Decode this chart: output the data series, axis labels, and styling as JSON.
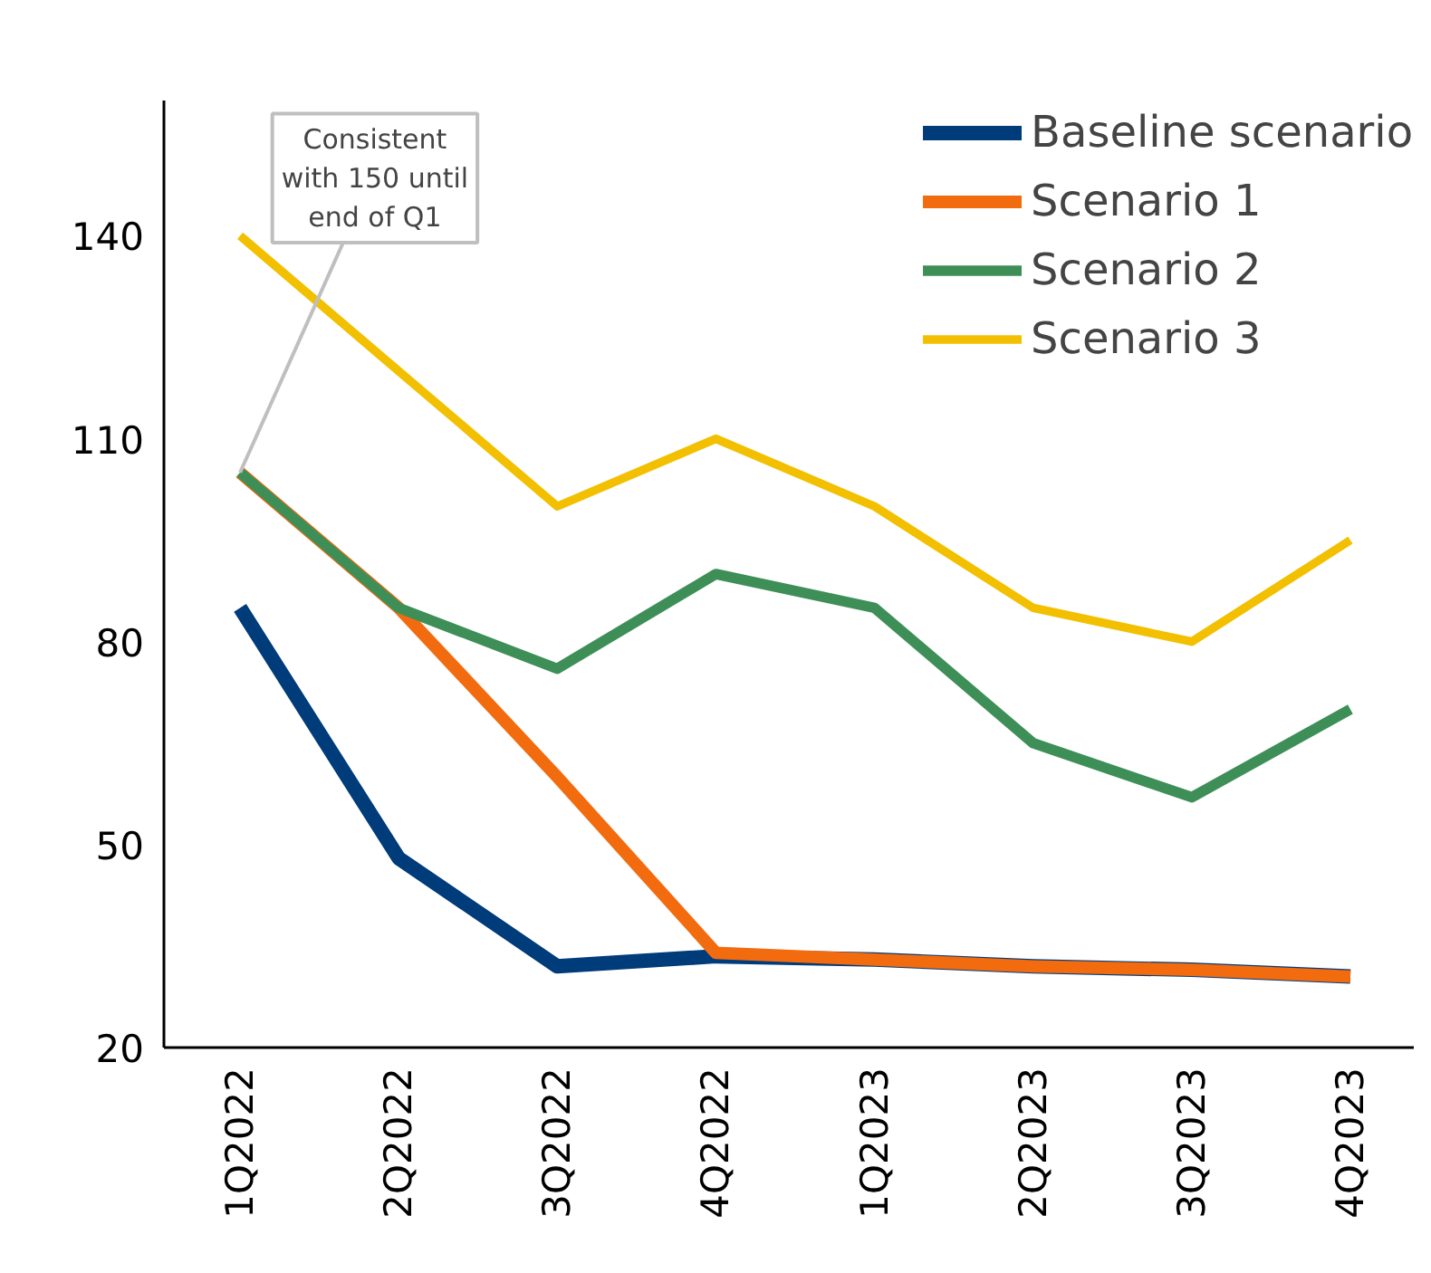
{
  "chart_data": {
    "type": "line",
    "categories": [
      "1Q2022",
      "2Q2022",
      "3Q2022",
      "4Q2022",
      "1Q2023",
      "2Q2023",
      "3Q2023",
      "4Q2023"
    ],
    "series": [
      {
        "name": "Baseline scenario",
        "color": "#003b7a",
        "values": [
          85,
          48,
          32,
          33.5,
          33,
          32,
          31.5,
          30.5
        ]
      },
      {
        "name": "Scenario 1",
        "color": "#f26b0f",
        "values": [
          105,
          85,
          60,
          34,
          33,
          32,
          31.5,
          30.5
        ]
      },
      {
        "name": "Scenario 2",
        "color": "#3e8f57",
        "values": [
          105,
          85,
          76,
          90,
          85,
          65,
          57,
          70
        ]
      },
      {
        "name": "Scenario 3",
        "color": "#f2c000",
        "values": [
          140,
          120,
          100,
          110,
          100,
          85,
          80,
          95
        ]
      }
    ],
    "ylim": [
      20,
      160
    ],
    "yticks": [
      20,
      50,
      80,
      110,
      140
    ],
    "annotations": [
      {
        "text": "Consistent\nwith 150 until\nend of Q1",
        "x": "1Q2022",
        "y": 105
      }
    ],
    "legend": "top right",
    "grid": false,
    "marker": "none",
    "line_style": "solid"
  }
}
